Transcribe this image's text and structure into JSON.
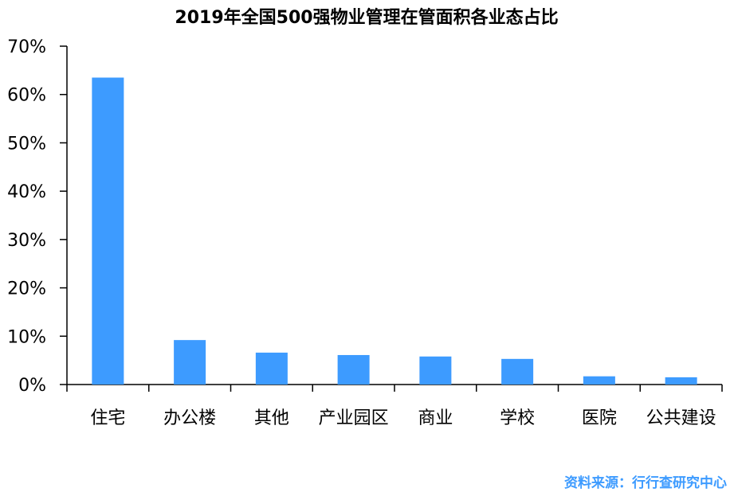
{
  "chart_data": {
    "type": "bar",
    "title": "2019年全国500强物业管理在管面积各业态占比",
    "xlabel": "",
    "ylabel": "",
    "categories": [
      "住宅",
      "办公楼",
      "其他",
      "产业园区",
      "商业",
      "学校",
      "医院",
      "公共建设"
    ],
    "values": [
      63.5,
      9.2,
      6.6,
      6.1,
      5.8,
      5.3,
      1.7,
      1.5
    ],
    "ylim": [
      0,
      70
    ],
    "yticks": [
      0,
      10,
      20,
      30,
      40,
      50,
      60,
      70
    ],
    "ytick_labels": [
      "0%",
      "10%",
      "20%",
      "30%",
      "40%",
      "50%",
      "60%",
      "70%"
    ],
    "grid": false,
    "legend": "none",
    "bar_color": "#3d9bff"
  },
  "source": {
    "text": "资料来源：行行查研究中心",
    "color": "#3d9bff"
  }
}
